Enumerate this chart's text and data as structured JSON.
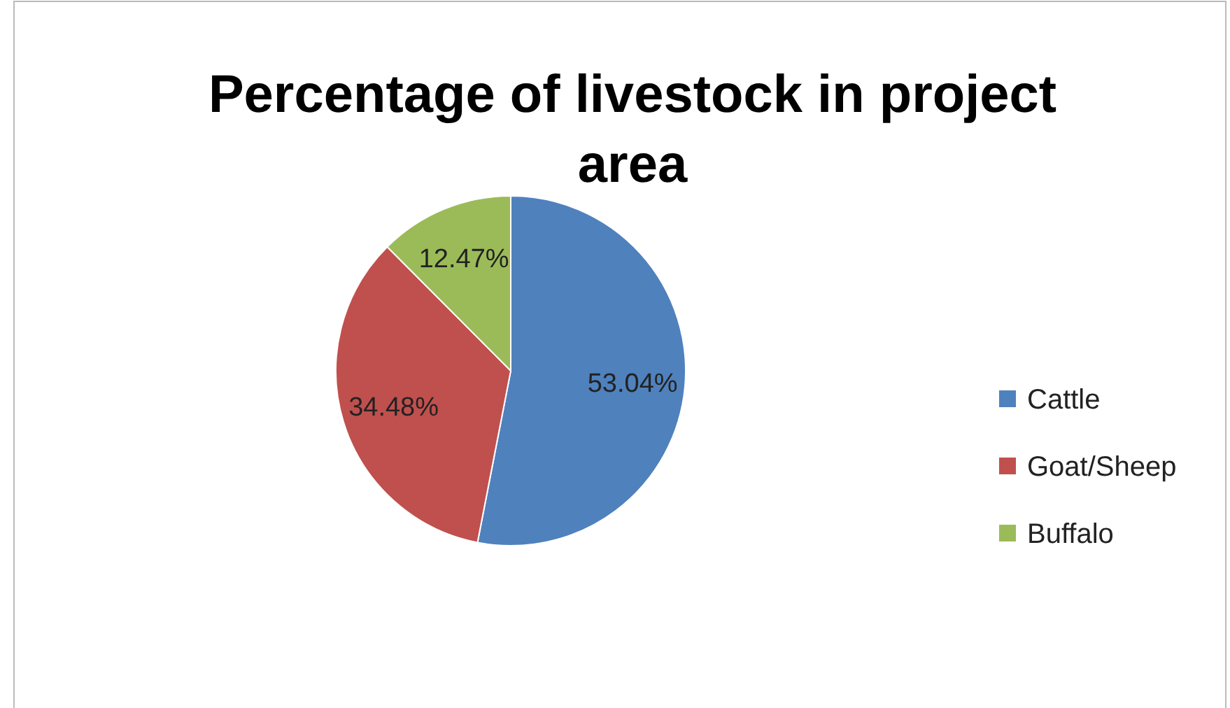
{
  "chart_data": {
    "type": "pie",
    "title": "Percentage of livestock in project area",
    "categories": [
      "Cattle",
      "Goat/Sheep",
      "Buffalo"
    ],
    "values": [
      53.04,
      34.48,
      12.47
    ],
    "value_labels": [
      "53.04%",
      "34.48%",
      "12.47%"
    ],
    "colors": [
      "#4f81bd",
      "#c0504d",
      "#9bbb59"
    ],
    "legend": "right"
  }
}
